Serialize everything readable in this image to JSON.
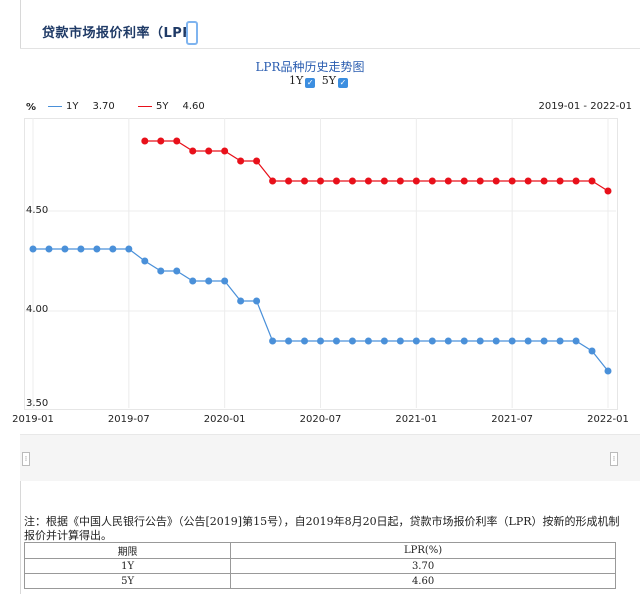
{
  "header": {
    "title": "贷款市场报价利率（LPR）"
  },
  "chart": {
    "title": "LPR品种历史走势图",
    "toggles": [
      {
        "label": "1Y"
      },
      {
        "label": "5Y"
      }
    ],
    "unit": "%",
    "legend": [
      {
        "name": "1Y",
        "value": "3.70",
        "color": "#4a90d9"
      },
      {
        "name": "5Y",
        "value": "4.60",
        "color": "#e8101a"
      }
    ],
    "range_label": "2019-01 - 2022-01",
    "y_ticks": [
      "4.50",
      "4.00",
      "3.50"
    ],
    "x_ticks": [
      "2019-01",
      "2019-07",
      "2020-01",
      "2020-07",
      "2021-01",
      "2021-07",
      "2022-01"
    ]
  },
  "chart_data": {
    "type": "line",
    "ylim": [
      3.5,
      5.0
    ],
    "x": [
      "2019-01",
      "2019-02",
      "2019-03",
      "2019-04",
      "2019-05",
      "2019-06",
      "2019-07",
      "2019-08",
      "2019-09",
      "2019-10",
      "2019-11",
      "2019-12",
      "2020-01",
      "2020-02",
      "2020-03",
      "2020-04",
      "2020-05",
      "2020-06",
      "2020-07",
      "2020-08",
      "2020-09",
      "2020-10",
      "2020-11",
      "2020-12",
      "2021-01",
      "2021-02",
      "2021-03",
      "2021-04",
      "2021-05",
      "2021-06",
      "2021-07",
      "2021-08",
      "2021-09",
      "2021-10",
      "2021-11",
      "2021-12",
      "2022-01"
    ],
    "series": [
      {
        "name": "1Y",
        "color": "#4a90d9",
        "values": [
          4.31,
          4.31,
          4.31,
          4.31,
          4.31,
          4.31,
          4.31,
          4.25,
          4.2,
          4.2,
          4.15,
          4.15,
          4.15,
          4.05,
          4.05,
          3.85,
          3.85,
          3.85,
          3.85,
          3.85,
          3.85,
          3.85,
          3.85,
          3.85,
          3.85,
          3.85,
          3.85,
          3.85,
          3.85,
          3.85,
          3.85,
          3.85,
          3.85,
          3.85,
          3.85,
          3.8,
          3.7
        ]
      },
      {
        "name": "5Y",
        "color": "#e8101a",
        "values": [
          null,
          null,
          null,
          null,
          null,
          null,
          null,
          4.85,
          4.85,
          4.85,
          4.8,
          4.8,
          4.8,
          4.75,
          4.75,
          4.65,
          4.65,
          4.65,
          4.65,
          4.65,
          4.65,
          4.65,
          4.65,
          4.65,
          4.65,
          4.65,
          4.65,
          4.65,
          4.65,
          4.65,
          4.65,
          4.65,
          4.65,
          4.65,
          4.65,
          4.65,
          4.6
        ]
      }
    ]
  },
  "note": "注：根据《中国人民银行公告》（公告[2019]第15号），自2019年8月20日起，贷款市场报价利率（LPR）按新的形成机制报价并计算得出。",
  "table": {
    "headers": [
      "期限",
      "LPR(%)"
    ],
    "rows": [
      [
        "1Y",
        "3.70"
      ],
      [
        "5Y",
        "4.60"
      ]
    ]
  }
}
